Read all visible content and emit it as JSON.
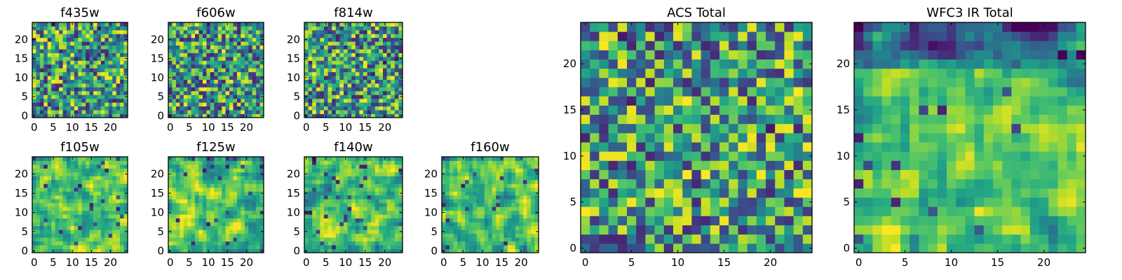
{
  "chart_data": [
    {
      "type": "heatmap",
      "title": "f435w",
      "colormap": "viridis",
      "grid_size": [
        25,
        25
      ],
      "xticks": [
        "0",
        "5",
        "10",
        "15",
        "20"
      ],
      "yticks": [
        "0",
        "5",
        "10",
        "15",
        "20"
      ],
      "xlim": [
        0,
        25
      ],
      "ylim": [
        0,
        25
      ],
      "pattern": "uniform-noise",
      "seed": 11
    },
    {
      "type": "heatmap",
      "title": "f606w",
      "colormap": "viridis",
      "grid_size": [
        25,
        25
      ],
      "xticks": [
        "0",
        "5",
        "10",
        "15",
        "20"
      ],
      "yticks": [
        "0",
        "5",
        "10",
        "15",
        "20"
      ],
      "xlim": [
        0,
        25
      ],
      "ylim": [
        0,
        25
      ],
      "pattern": "uniform-noise",
      "seed": 23
    },
    {
      "type": "heatmap",
      "title": "f814w",
      "colormap": "viridis",
      "grid_size": [
        25,
        25
      ],
      "xticks": [
        "0",
        "5",
        "10",
        "15",
        "20"
      ],
      "yticks": [
        "0",
        "5",
        "10",
        "15",
        "20"
      ],
      "xlim": [
        0,
        25
      ],
      "ylim": [
        0,
        25
      ],
      "pattern": "uniform-noise",
      "seed": 37
    },
    {
      "type": "heatmap",
      "title": "f105w",
      "colormap": "viridis",
      "grid_size": [
        25,
        25
      ],
      "xticks": [
        "0",
        "5",
        "10",
        "15",
        "20"
      ],
      "yticks": [
        "0",
        "5",
        "10",
        "15",
        "20"
      ],
      "xlim": [
        0,
        25
      ],
      "ylim": [
        0,
        25
      ],
      "pattern": "smooth-noise",
      "seed": 41
    },
    {
      "type": "heatmap",
      "title": "f125w",
      "colormap": "viridis",
      "grid_size": [
        25,
        25
      ],
      "xticks": [
        "0",
        "5",
        "10",
        "15",
        "20"
      ],
      "yticks": [
        "0",
        "5",
        "10",
        "15",
        "20"
      ],
      "xlim": [
        0,
        25
      ],
      "ylim": [
        0,
        25
      ],
      "pattern": "smooth-noise",
      "seed": 53
    },
    {
      "type": "heatmap",
      "title": "f140w",
      "colormap": "viridis",
      "grid_size": [
        25,
        25
      ],
      "xticks": [
        "0",
        "5",
        "10",
        "15",
        "20"
      ],
      "yticks": [
        "0",
        "5",
        "10",
        "15",
        "20"
      ],
      "xlim": [
        0,
        25
      ],
      "ylim": [
        0,
        25
      ],
      "pattern": "smooth-noise",
      "seed": 67
    },
    {
      "type": "heatmap",
      "title": "f160w",
      "colormap": "viridis",
      "grid_size": [
        25,
        25
      ],
      "xticks": [
        "0",
        "5",
        "10",
        "15",
        "20"
      ],
      "yticks": [
        "0",
        "5",
        "10",
        "15",
        "20"
      ],
      "xlim": [
        0,
        25
      ],
      "ylim": [
        0,
        25
      ],
      "pattern": "smooth-noise",
      "seed": 79
    },
    {
      "type": "heatmap",
      "title": "ACS Total",
      "colormap": "viridis",
      "grid_size": [
        25,
        25
      ],
      "xticks": [
        "0",
        "5",
        "10",
        "15",
        "20"
      ],
      "yticks": [
        "0",
        "5",
        "10",
        "15",
        "20"
      ],
      "xlim": [
        0,
        25
      ],
      "ylim": [
        0,
        25
      ],
      "pattern": "uniform-noise",
      "seed": 97
    },
    {
      "type": "heatmap",
      "title": "WFC3 IR Total",
      "colormap": "viridis",
      "grid_size": [
        25,
        25
      ],
      "xticks": [
        "0",
        "5",
        "10",
        "15",
        "20"
      ],
      "yticks": [
        "0",
        "5",
        "10",
        "15",
        "20"
      ],
      "xlim": [
        0,
        25
      ],
      "ylim": [
        0,
        25
      ],
      "pattern": "smooth-noise-dark-top",
      "seed": 113
    }
  ]
}
